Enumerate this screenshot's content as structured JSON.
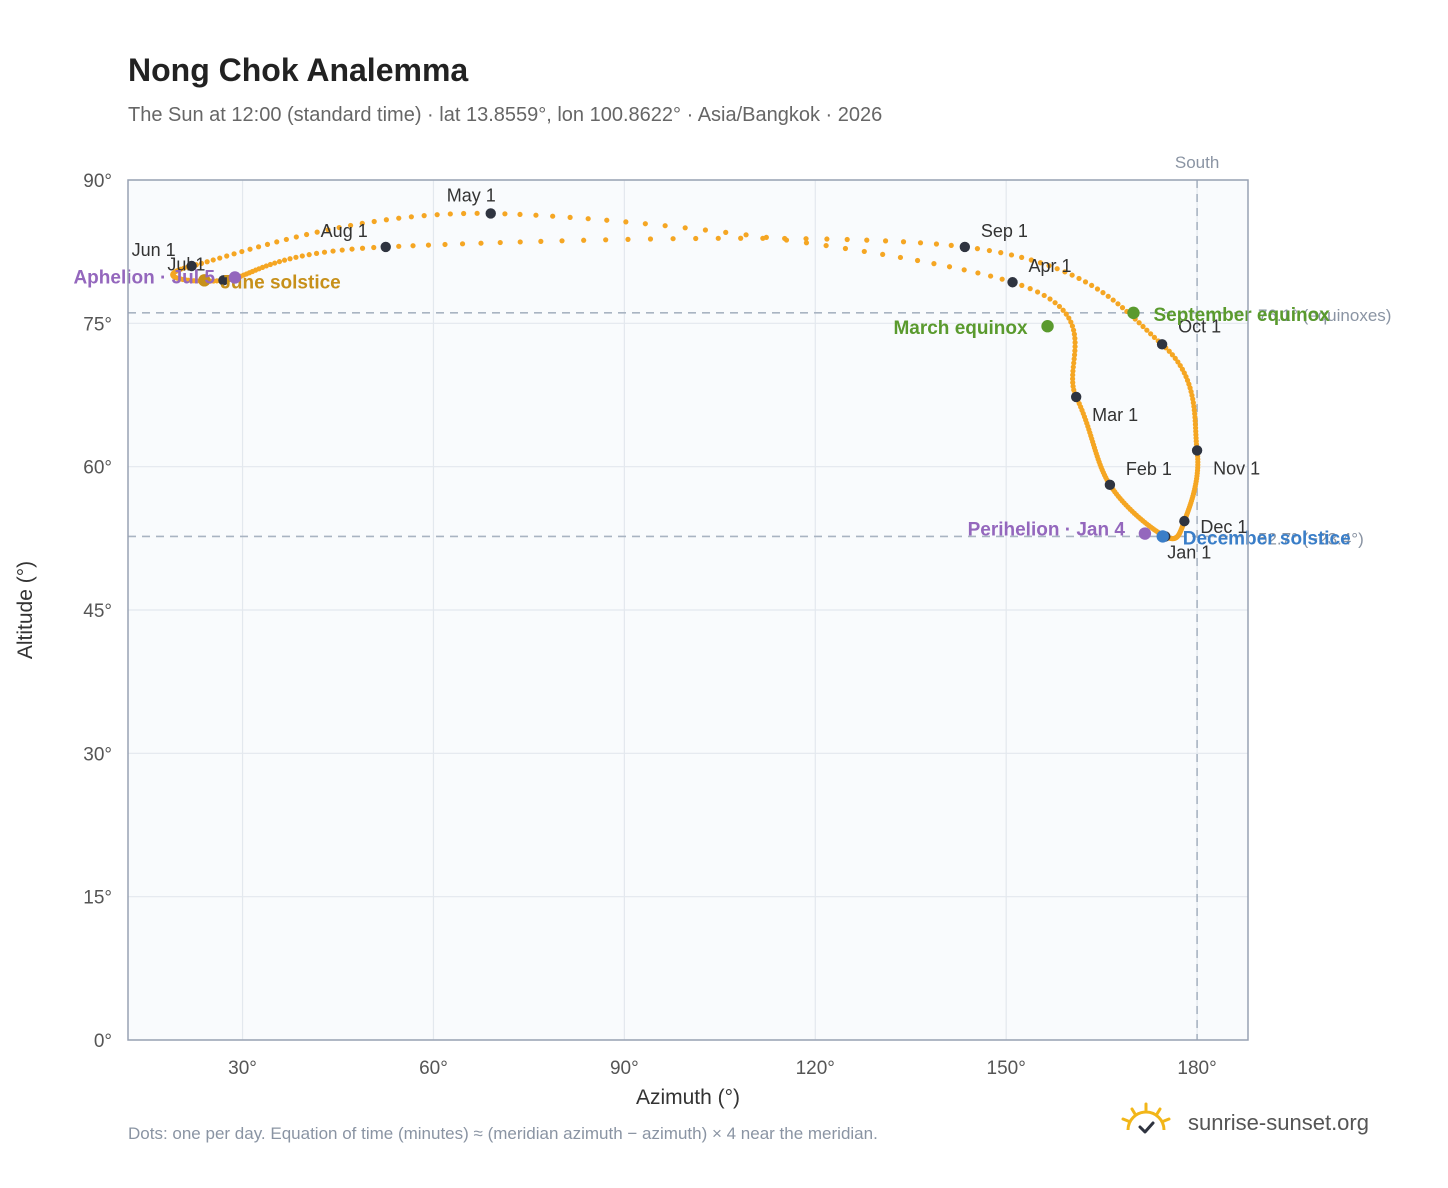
{
  "title": "Nong Chok Analemma",
  "subtitle": "The Sun at 12:00 (standard time) · lat 13.8559°, lon 100.8622° · Asia/Bangkok · 2026",
  "footnote": "Dots: one per day. Equation of time (minutes) ≈ (meridian azimuth − azimuth) × 4 near the meridian.",
  "brand": {
    "name": "sunrise-sunset.org",
    "icon": "sun-logo-icon"
  },
  "colors": {
    "curve": "#f5a623",
    "marker": "#2f3440",
    "equinox": "#5a9a2e",
    "aphelion": "#9467bd",
    "june": "#c7901a",
    "december": "#3a7ec8",
    "refline": "#a9b4c2",
    "plot_bg": "#f9fbfd",
    "grid": "#e3e8ee"
  },
  "chart_data": {
    "type": "scatter",
    "title": "Nong Chok Analemma",
    "xlabel": "Azimuth (°)",
    "ylabel": "Altitude (°)",
    "xlim": [
      12,
      188
    ],
    "ylim": [
      0,
      90
    ],
    "x_ticks": [
      {
        "v": 30,
        "label": "30°"
      },
      {
        "v": 60,
        "label": "60°"
      },
      {
        "v": 90,
        "label": "90°"
      },
      {
        "v": 120,
        "label": "120°"
      },
      {
        "v": 150,
        "label": "150°"
      },
      {
        "v": 180,
        "label": "180°"
      }
    ],
    "y_ticks": [
      {
        "v": 0,
        "label": "0°"
      },
      {
        "v": 15,
        "label": "15°"
      },
      {
        "v": 30,
        "label": "30°"
      },
      {
        "v": 45,
        "label": "45°"
      },
      {
        "v": 60,
        "label": "60°"
      },
      {
        "v": 75,
        "label": "75°"
      },
      {
        "v": 90,
        "label": "90°"
      }
    ],
    "grid": true,
    "vertical_ref": {
      "x": 180,
      "label": "South"
    },
    "horizontal_refs": [
      {
        "y": 76.1,
        "label": "76.1° (equinoxes)"
      },
      {
        "y": 52.7,
        "label": "52.7° (−23.4°)"
      }
    ],
    "curve_points": [
      {
        "label": "Jan 1",
        "az": 175.0,
        "alt": 52.7
      },
      {
        "label": "Feb 1",
        "az": 166.3,
        "alt": 58.1
      },
      {
        "label": "Mar 1",
        "az": 161.0,
        "alt": 67.3
      },
      {
        "label": "Apr 1",
        "az": 151.0,
        "alt": 79.3
      },
      {
        "label": "May 1",
        "az": 69.0,
        "alt": 86.5
      },
      {
        "label": "Jun 1",
        "az": 22.0,
        "alt": 81.0
      },
      {
        "label": "Jul 1",
        "az": 27.0,
        "alt": 79.5
      },
      {
        "label": "Aug 1",
        "az": 52.5,
        "alt": 83.0
      },
      {
        "label": "Sep 1",
        "az": 143.5,
        "alt": 83.0
      },
      {
        "label": "Oct 1",
        "az": 174.5,
        "alt": 72.8
      },
      {
        "label": "Nov 1",
        "az": 180.0,
        "alt": 61.7
      },
      {
        "label": "Dec 1",
        "az": 178.0,
        "alt": 54.3
      }
    ],
    "events": [
      {
        "label": "March equinox",
        "az": 156.5,
        "alt": 74.7,
        "kind": "equinox"
      },
      {
        "label": "September equinox",
        "az": 170.0,
        "alt": 76.1,
        "kind": "equinox"
      },
      {
        "label": "June solstice",
        "az": 24.0,
        "alt": 79.5,
        "kind": "june"
      },
      {
        "label": "December solstice",
        "az": 174.6,
        "alt": 52.7,
        "kind": "december"
      },
      {
        "label": "Perihelion · Jan 4",
        "az": 171.8,
        "alt": 53.0,
        "kind": "aphelion"
      },
      {
        "label": "Aphelion · Jul 5",
        "az": 28.8,
        "alt": 79.8,
        "kind": "aphelion"
      }
    ]
  }
}
